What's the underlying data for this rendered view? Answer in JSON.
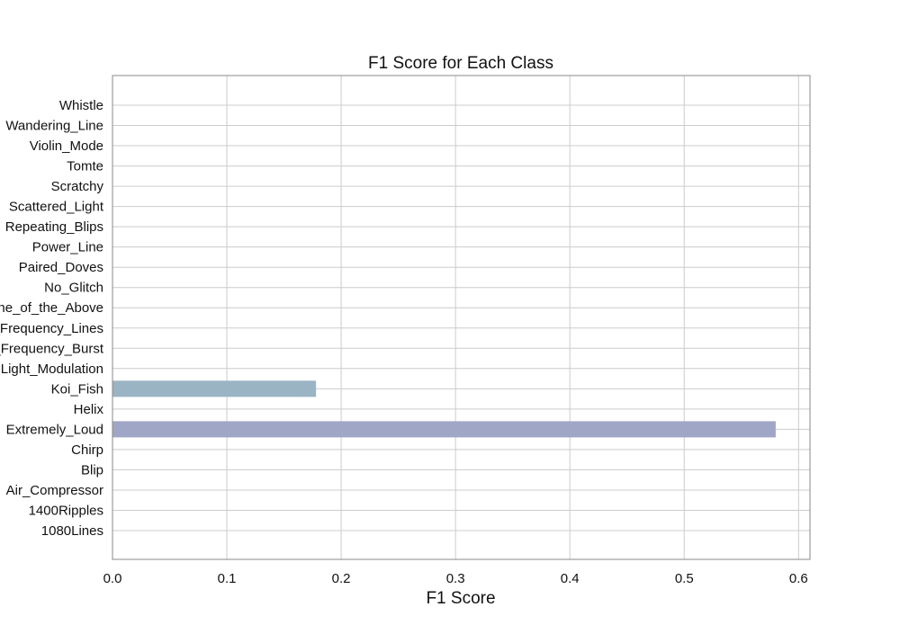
{
  "chart_data": {
    "type": "bar",
    "orientation": "horizontal",
    "title": "F1 Score for Each Class",
    "xlabel": "F1 Score",
    "ylabel": "",
    "xlim": [
      0.0,
      0.61
    ],
    "xticks": [
      0.0,
      0.1,
      0.2,
      0.3,
      0.4,
      0.5,
      0.6
    ],
    "xtick_labels": [
      "0.0",
      "0.1",
      "0.2",
      "0.3",
      "0.4",
      "0.5",
      "0.6"
    ],
    "grid": true,
    "categories": [
      "1080Lines",
      "1400Ripples",
      "Air_Compressor",
      "Blip",
      "Chirp",
      "Extremely_Loud",
      "Helix",
      "Koi_Fish",
      "Light_Modulation",
      "Low_Frequency_Burst",
      "Low_Frequency_Lines",
      "None_of_the_Above",
      "No_Glitch",
      "Paired_Doves",
      "Power_Line",
      "Repeating_Blips",
      "Scattered_Light",
      "Scratchy",
      "Tomte",
      "Violin_Mode",
      "Wandering_Line",
      "Whistle"
    ],
    "values": [
      0,
      0,
      0,
      0,
      0,
      0.58,
      0,
      0.178,
      0,
      0,
      0,
      0,
      0,
      0,
      0,
      0,
      0,
      0,
      0,
      0,
      0,
      0
    ],
    "bar_colors": {
      "Extremely_Loud": "#a0a6c5",
      "Koi_Fish": "#9ab4c4"
    },
    "default_bar_color": "#9aaec4",
    "colors": {
      "grid": "#cccccc",
      "spine": "#888888",
      "text": "#111111"
    }
  }
}
